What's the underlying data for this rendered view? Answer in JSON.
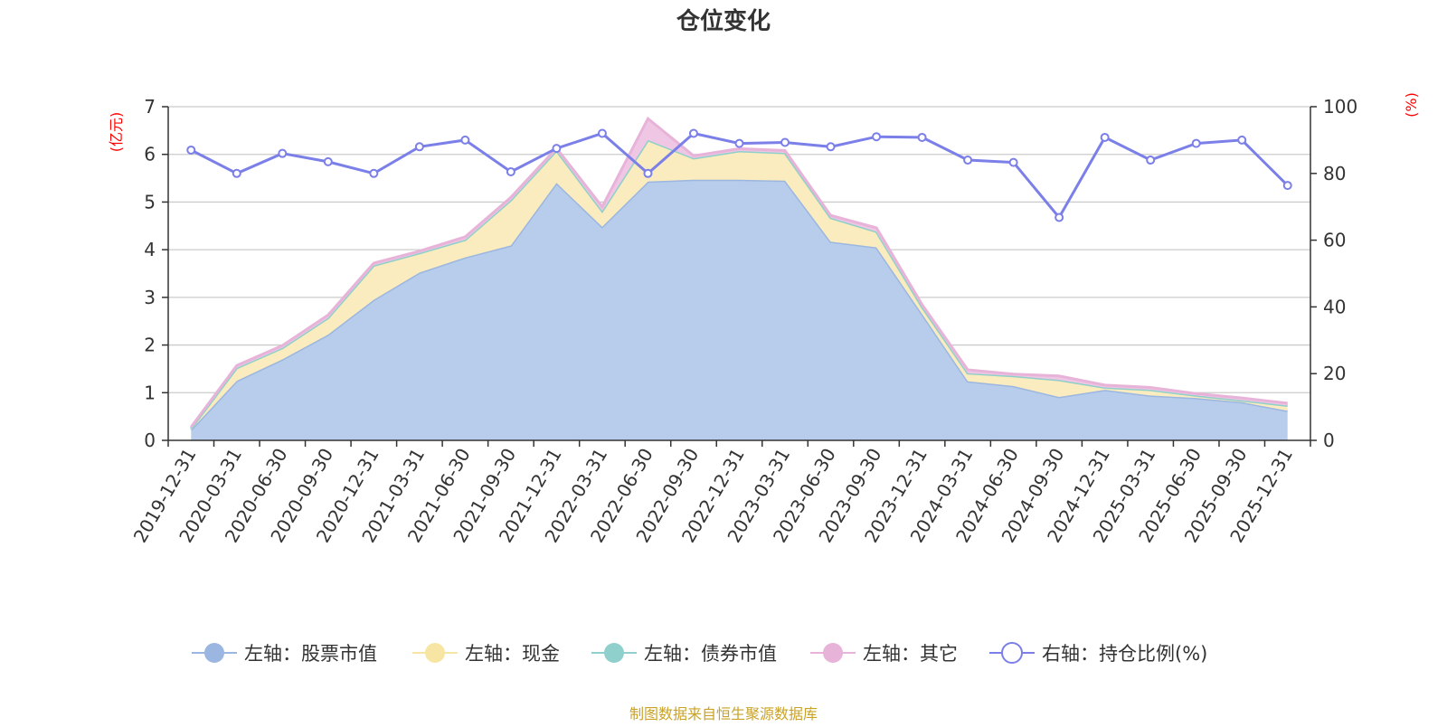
{
  "chart_data": {
    "type": "area",
    "title": "仓位变化",
    "left_unit": "(亿元)",
    "right_unit": "(%)",
    "x": [
      "2019-12-31",
      "2020-03-31",
      "2020-06-30",
      "2020-09-30",
      "2020-12-31",
      "2021-03-31",
      "2021-06-30",
      "2021-09-30",
      "2021-12-31",
      "2022-03-31",
      "2022-06-30",
      "2022-09-30",
      "2022-12-31",
      "2023-03-31",
      "2023-06-30",
      "2023-09-30",
      "2023-12-31",
      "2024-03-31",
      "2024-06-30",
      "2024-09-30",
      "2024-12-31",
      "2025-03-31",
      "2025-06-30",
      "2025-09-30",
      "2025-12-31"
    ],
    "ylim_left": [
      0,
      7
    ],
    "yticks_left": [
      0,
      1,
      2,
      3,
      4,
      5,
      6,
      7
    ],
    "ylim_right": [
      0,
      100
    ],
    "yticks_right": [
      0,
      20,
      40,
      60,
      80,
      100
    ],
    "grid": true,
    "legend_position": "bottom",
    "series": [
      {
        "name": "左轴：股票市值",
        "axis": "left",
        "stack": true,
        "color": "#9bb6e0",
        "fill": "#b8cdeb",
        "values": [
          0.22,
          1.25,
          1.7,
          2.22,
          2.95,
          3.52,
          3.84,
          4.09,
          5.4,
          4.48,
          5.43,
          5.47,
          5.47,
          5.45,
          4.17,
          4.05,
          2.65,
          1.24,
          1.14,
          0.91,
          1.06,
          0.94,
          0.89,
          0.8,
          0.62
        ]
      },
      {
        "name": "左轴：现金",
        "axis": "left",
        "stack": true,
        "color": "#f7e6a3",
        "fill": "#faecbe",
        "values": [
          0.03,
          0.27,
          0.24,
          0.35,
          0.72,
          0.41,
          0.37,
          0.95,
          0.68,
          0.33,
          0.87,
          0.45,
          0.6,
          0.58,
          0.5,
          0.33,
          0.15,
          0.17,
          0.21,
          0.36,
          0.05,
          0.12,
          0.05,
          0.04,
          0.11
        ]
      },
      {
        "name": "左轴：债券市值",
        "axis": "left",
        "stack": true,
        "color": "#8fd0cc",
        "fill": "#a9dcd8",
        "values": [
          0,
          0,
          0,
          0,
          0,
          0,
          0,
          0,
          0,
          0,
          0,
          0,
          0,
          0,
          0,
          0,
          0,
          0,
          0,
          0,
          0,
          0,
          0,
          0,
          0
        ]
      },
      {
        "name": "左轴：其它",
        "axis": "left",
        "stack": true,
        "color": "#e8b3d8",
        "fill": "#efc6e3",
        "values": [
          0.03,
          0.05,
          0.05,
          0.06,
          0.05,
          0.04,
          0.06,
          0.06,
          0.05,
          0.09,
          0.45,
          0.05,
          0.05,
          0.05,
          0.05,
          0.08,
          0.05,
          0.07,
          0.04,
          0.08,
          0.05,
          0.05,
          0.04,
          0.05,
          0.05
        ]
      },
      {
        "name": "右轴：持仓比例(%)",
        "axis": "right",
        "type": "line",
        "color": "#7b7fe8",
        "values": [
          87,
          80,
          86,
          83.5,
          80,
          88,
          90,
          80.5,
          87.5,
          92,
          80,
          92,
          89,
          89.3,
          88,
          91,
          90.8,
          84,
          83.3,
          66.8,
          90.8,
          84,
          89,
          90,
          76.4
        ]
      }
    ]
  },
  "footer": "制图数据来自恒生聚源数据库"
}
